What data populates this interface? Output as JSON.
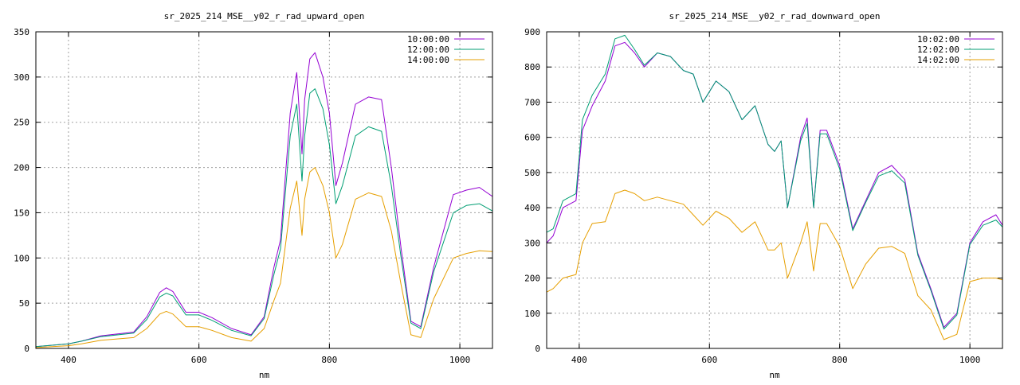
{
  "chart_data": [
    {
      "type": "line",
      "title": "sr_2025_214_MSE__y02_r_rad_upward_open",
      "xlabel": "nm",
      "ylabel": "",
      "xlim": [
        350,
        1050
      ],
      "ylim": [
        0,
        350
      ],
      "xticks": [
        400,
        600,
        800,
        1000
      ],
      "yticks": [
        0,
        50,
        100,
        150,
        200,
        250,
        300,
        350
      ],
      "grid": true,
      "legend_position": "top-right",
      "series": [
        {
          "name": "10:00:00",
          "color": "#9400d3",
          "x": [
            350,
            400,
            420,
            450,
            500,
            520,
            540,
            550,
            560,
            580,
            600,
            620,
            650,
            680,
            700,
            715,
            725,
            740,
            750,
            758,
            762,
            770,
            778,
            790,
            800,
            810,
            820,
            840,
            860,
            880,
            895,
            910,
            925,
            940,
            960,
            990,
            1010,
            1030,
            1050
          ],
          "y": [
            2,
            5,
            8,
            14,
            18,
            35,
            62,
            67,
            63,
            40,
            40,
            34,
            22,
            15,
            35,
            90,
            120,
            260,
            305,
            215,
            275,
            320,
            327,
            300,
            260,
            180,
            205,
            270,
            278,
            275,
            200,
            110,
            30,
            24,
            90,
            170,
            175,
            178,
            168
          ]
        },
        {
          "name": "12:00:00",
          "color": "#009e73",
          "x": [
            350,
            400,
            420,
            450,
            500,
            520,
            540,
            550,
            560,
            580,
            600,
            620,
            650,
            680,
            700,
            715,
            725,
            740,
            750,
            758,
            762,
            770,
            778,
            790,
            800,
            810,
            820,
            840,
            860,
            880,
            895,
            910,
            925,
            940,
            960,
            990,
            1010,
            1030,
            1050
          ],
          "y": [
            2,
            5,
            8,
            13,
            17,
            32,
            57,
            61,
            58,
            37,
            37,
            31,
            20,
            14,
            33,
            82,
            110,
            235,
            270,
            185,
            235,
            282,
            287,
            265,
            225,
            160,
            180,
            235,
            245,
            240,
            180,
            100,
            28,
            22,
            85,
            150,
            158,
            160,
            152
          ]
        },
        {
          "name": "14:00:00",
          "color": "#e69f00",
          "x": [
            350,
            400,
            420,
            450,
            500,
            520,
            540,
            550,
            560,
            580,
            600,
            620,
            650,
            680,
            700,
            715,
            725,
            740,
            750,
            758,
            762,
            770,
            778,
            790,
            800,
            810,
            820,
            840,
            860,
            880,
            895,
            910,
            925,
            940,
            960,
            990,
            1010,
            1030,
            1050
          ],
          "y": [
            1,
            3,
            5,
            9,
            12,
            22,
            38,
            41,
            38,
            24,
            24,
            20,
            12,
            8,
            22,
            53,
            72,
            155,
            185,
            125,
            165,
            195,
            200,
            180,
            150,
            100,
            115,
            165,
            172,
            168,
            130,
            70,
            15,
            12,
            55,
            100,
            105,
            108,
            107
          ]
        }
      ]
    },
    {
      "type": "line",
      "title": "sr_2025_214_MSE__y02_r_rad_downward_open",
      "xlabel": "nm",
      "ylabel": "",
      "xlim": [
        350,
        1050
      ],
      "ylim": [
        0,
        900
      ],
      "xticks": [
        400,
        600,
        800,
        1000
      ],
      "yticks": [
        0,
        100,
        200,
        300,
        400,
        500,
        600,
        700,
        800,
        900
      ],
      "grid": true,
      "legend_position": "top-right",
      "series": [
        {
          "name": "10:02:00",
          "color": "#9400d3",
          "x": [
            350,
            360,
            375,
            395,
            405,
            420,
            440,
            455,
            470,
            485,
            500,
            520,
            540,
            560,
            575,
            590,
            610,
            630,
            650,
            670,
            690,
            700,
            710,
            720,
            740,
            750,
            760,
            770,
            780,
            800,
            820,
            840,
            860,
            880,
            900,
            920,
            940,
            960,
            980,
            1000,
            1020,
            1040,
            1050
          ],
          "y": [
            300,
            320,
            400,
            420,
            620,
            690,
            760,
            860,
            870,
            840,
            800,
            840,
            830,
            790,
            780,
            700,
            760,
            730,
            650,
            690,
            580,
            560,
            590,
            400,
            600,
            655,
            400,
            620,
            620,
            520,
            340,
            420,
            500,
            520,
            480,
            270,
            170,
            60,
            100,
            300,
            360,
            380,
            350
          ]
        },
        {
          "name": "12:02:00",
          "color": "#009e73",
          "x": [
            350,
            360,
            375,
            395,
            405,
            420,
            440,
            455,
            470,
            485,
            500,
            520,
            540,
            560,
            575,
            590,
            610,
            630,
            650,
            670,
            690,
            700,
            710,
            720,
            740,
            750,
            760,
            770,
            780,
            800,
            820,
            840,
            860,
            880,
            900,
            920,
            940,
            960,
            980,
            1000,
            1020,
            1040,
            1050
          ],
          "y": [
            330,
            340,
            420,
            440,
            650,
            720,
            780,
            880,
            890,
            850,
            805,
            840,
            830,
            790,
            780,
            700,
            760,
            730,
            650,
            690,
            580,
            560,
            590,
            400,
            590,
            640,
            400,
            610,
            610,
            510,
            335,
            415,
            490,
            505,
            470,
            265,
            165,
            55,
            95,
            295,
            350,
            365,
            345
          ]
        },
        {
          "name": "14:02:00",
          "color": "#e69f00",
          "x": [
            350,
            360,
            375,
            395,
            405,
            420,
            440,
            455,
            470,
            485,
            500,
            520,
            540,
            560,
            575,
            590,
            610,
            630,
            650,
            670,
            690,
            700,
            710,
            720,
            740,
            750,
            760,
            770,
            780,
            800,
            820,
            840,
            860,
            880,
            900,
            920,
            940,
            960,
            980,
            1000,
            1020,
            1040,
            1050
          ],
          "y": [
            160,
            170,
            200,
            210,
            300,
            355,
            360,
            440,
            450,
            440,
            420,
            430,
            420,
            410,
            380,
            350,
            390,
            370,
            330,
            360,
            280,
            280,
            300,
            200,
            300,
            360,
            220,
            355,
            355,
            290,
            170,
            240,
            285,
            290,
            270,
            150,
            110,
            25,
            40,
            190,
            200,
            200,
            195
          ]
        }
      ]
    }
  ]
}
